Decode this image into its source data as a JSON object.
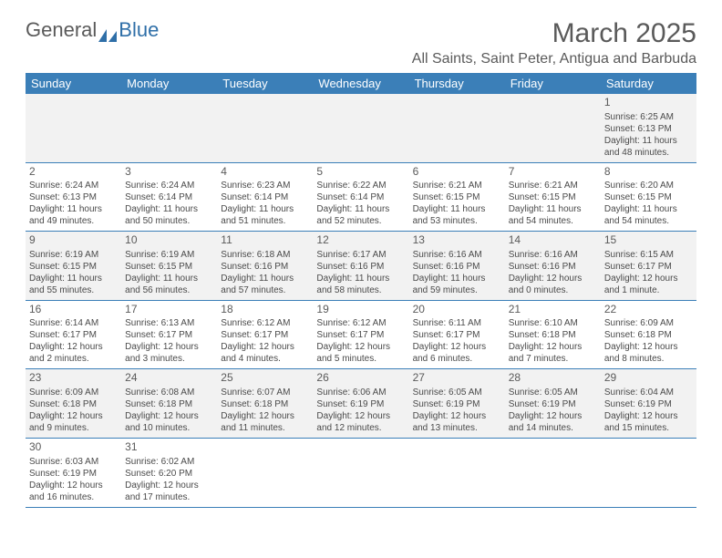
{
  "brand": {
    "part1": "General",
    "part2": "Blue"
  },
  "title": "March 2025",
  "location": "All Saints, Saint Peter, Antigua and Barbuda",
  "colors": {
    "header_bg": "#3b7fb8",
    "header_fg": "#ffffff",
    "row_alt": "#f2f2f2",
    "text": "#4a4a4a",
    "title": "#5a5a5a"
  },
  "day_headers": [
    "Sunday",
    "Monday",
    "Tuesday",
    "Wednesday",
    "Thursday",
    "Friday",
    "Saturday"
  ],
  "weeks": [
    [
      null,
      null,
      null,
      null,
      null,
      null,
      {
        "n": "1",
        "sr": "Sunrise: 6:25 AM",
        "ss": "Sunset: 6:13 PM",
        "d1": "Daylight: 11 hours",
        "d2": "and 48 minutes."
      }
    ],
    [
      {
        "n": "2",
        "sr": "Sunrise: 6:24 AM",
        "ss": "Sunset: 6:13 PM",
        "d1": "Daylight: 11 hours",
        "d2": "and 49 minutes."
      },
      {
        "n": "3",
        "sr": "Sunrise: 6:24 AM",
        "ss": "Sunset: 6:14 PM",
        "d1": "Daylight: 11 hours",
        "d2": "and 50 minutes."
      },
      {
        "n": "4",
        "sr": "Sunrise: 6:23 AM",
        "ss": "Sunset: 6:14 PM",
        "d1": "Daylight: 11 hours",
        "d2": "and 51 minutes."
      },
      {
        "n": "5",
        "sr": "Sunrise: 6:22 AM",
        "ss": "Sunset: 6:14 PM",
        "d1": "Daylight: 11 hours",
        "d2": "and 52 minutes."
      },
      {
        "n": "6",
        "sr": "Sunrise: 6:21 AM",
        "ss": "Sunset: 6:15 PM",
        "d1": "Daylight: 11 hours",
        "d2": "and 53 minutes."
      },
      {
        "n": "7",
        "sr": "Sunrise: 6:21 AM",
        "ss": "Sunset: 6:15 PM",
        "d1": "Daylight: 11 hours",
        "d2": "and 54 minutes."
      },
      {
        "n": "8",
        "sr": "Sunrise: 6:20 AM",
        "ss": "Sunset: 6:15 PM",
        "d1": "Daylight: 11 hours",
        "d2": "and 54 minutes."
      }
    ],
    [
      {
        "n": "9",
        "sr": "Sunrise: 6:19 AM",
        "ss": "Sunset: 6:15 PM",
        "d1": "Daylight: 11 hours",
        "d2": "and 55 minutes."
      },
      {
        "n": "10",
        "sr": "Sunrise: 6:19 AM",
        "ss": "Sunset: 6:15 PM",
        "d1": "Daylight: 11 hours",
        "d2": "and 56 minutes."
      },
      {
        "n": "11",
        "sr": "Sunrise: 6:18 AM",
        "ss": "Sunset: 6:16 PM",
        "d1": "Daylight: 11 hours",
        "d2": "and 57 minutes."
      },
      {
        "n": "12",
        "sr": "Sunrise: 6:17 AM",
        "ss": "Sunset: 6:16 PM",
        "d1": "Daylight: 11 hours",
        "d2": "and 58 minutes."
      },
      {
        "n": "13",
        "sr": "Sunrise: 6:16 AM",
        "ss": "Sunset: 6:16 PM",
        "d1": "Daylight: 11 hours",
        "d2": "and 59 minutes."
      },
      {
        "n": "14",
        "sr": "Sunrise: 6:16 AM",
        "ss": "Sunset: 6:16 PM",
        "d1": "Daylight: 12 hours",
        "d2": "and 0 minutes."
      },
      {
        "n": "15",
        "sr": "Sunrise: 6:15 AM",
        "ss": "Sunset: 6:17 PM",
        "d1": "Daylight: 12 hours",
        "d2": "and 1 minute."
      }
    ],
    [
      {
        "n": "16",
        "sr": "Sunrise: 6:14 AM",
        "ss": "Sunset: 6:17 PM",
        "d1": "Daylight: 12 hours",
        "d2": "and 2 minutes."
      },
      {
        "n": "17",
        "sr": "Sunrise: 6:13 AM",
        "ss": "Sunset: 6:17 PM",
        "d1": "Daylight: 12 hours",
        "d2": "and 3 minutes."
      },
      {
        "n": "18",
        "sr": "Sunrise: 6:12 AM",
        "ss": "Sunset: 6:17 PM",
        "d1": "Daylight: 12 hours",
        "d2": "and 4 minutes."
      },
      {
        "n": "19",
        "sr": "Sunrise: 6:12 AM",
        "ss": "Sunset: 6:17 PM",
        "d1": "Daylight: 12 hours",
        "d2": "and 5 minutes."
      },
      {
        "n": "20",
        "sr": "Sunrise: 6:11 AM",
        "ss": "Sunset: 6:17 PM",
        "d1": "Daylight: 12 hours",
        "d2": "and 6 minutes."
      },
      {
        "n": "21",
        "sr": "Sunrise: 6:10 AM",
        "ss": "Sunset: 6:18 PM",
        "d1": "Daylight: 12 hours",
        "d2": "and 7 minutes."
      },
      {
        "n": "22",
        "sr": "Sunrise: 6:09 AM",
        "ss": "Sunset: 6:18 PM",
        "d1": "Daylight: 12 hours",
        "d2": "and 8 minutes."
      }
    ],
    [
      {
        "n": "23",
        "sr": "Sunrise: 6:09 AM",
        "ss": "Sunset: 6:18 PM",
        "d1": "Daylight: 12 hours",
        "d2": "and 9 minutes."
      },
      {
        "n": "24",
        "sr": "Sunrise: 6:08 AM",
        "ss": "Sunset: 6:18 PM",
        "d1": "Daylight: 12 hours",
        "d2": "and 10 minutes."
      },
      {
        "n": "25",
        "sr": "Sunrise: 6:07 AM",
        "ss": "Sunset: 6:18 PM",
        "d1": "Daylight: 12 hours",
        "d2": "and 11 minutes."
      },
      {
        "n": "26",
        "sr": "Sunrise: 6:06 AM",
        "ss": "Sunset: 6:19 PM",
        "d1": "Daylight: 12 hours",
        "d2": "and 12 minutes."
      },
      {
        "n": "27",
        "sr": "Sunrise: 6:05 AM",
        "ss": "Sunset: 6:19 PM",
        "d1": "Daylight: 12 hours",
        "d2": "and 13 minutes."
      },
      {
        "n": "28",
        "sr": "Sunrise: 6:05 AM",
        "ss": "Sunset: 6:19 PM",
        "d1": "Daylight: 12 hours",
        "d2": "and 14 minutes."
      },
      {
        "n": "29",
        "sr": "Sunrise: 6:04 AM",
        "ss": "Sunset: 6:19 PM",
        "d1": "Daylight: 12 hours",
        "d2": "and 15 minutes."
      }
    ],
    [
      {
        "n": "30",
        "sr": "Sunrise: 6:03 AM",
        "ss": "Sunset: 6:19 PM",
        "d1": "Daylight: 12 hours",
        "d2": "and 16 minutes."
      },
      {
        "n": "31",
        "sr": "Sunrise: 6:02 AM",
        "ss": "Sunset: 6:20 PM",
        "d1": "Daylight: 12 hours",
        "d2": "and 17 minutes."
      },
      null,
      null,
      null,
      null,
      null
    ]
  ]
}
